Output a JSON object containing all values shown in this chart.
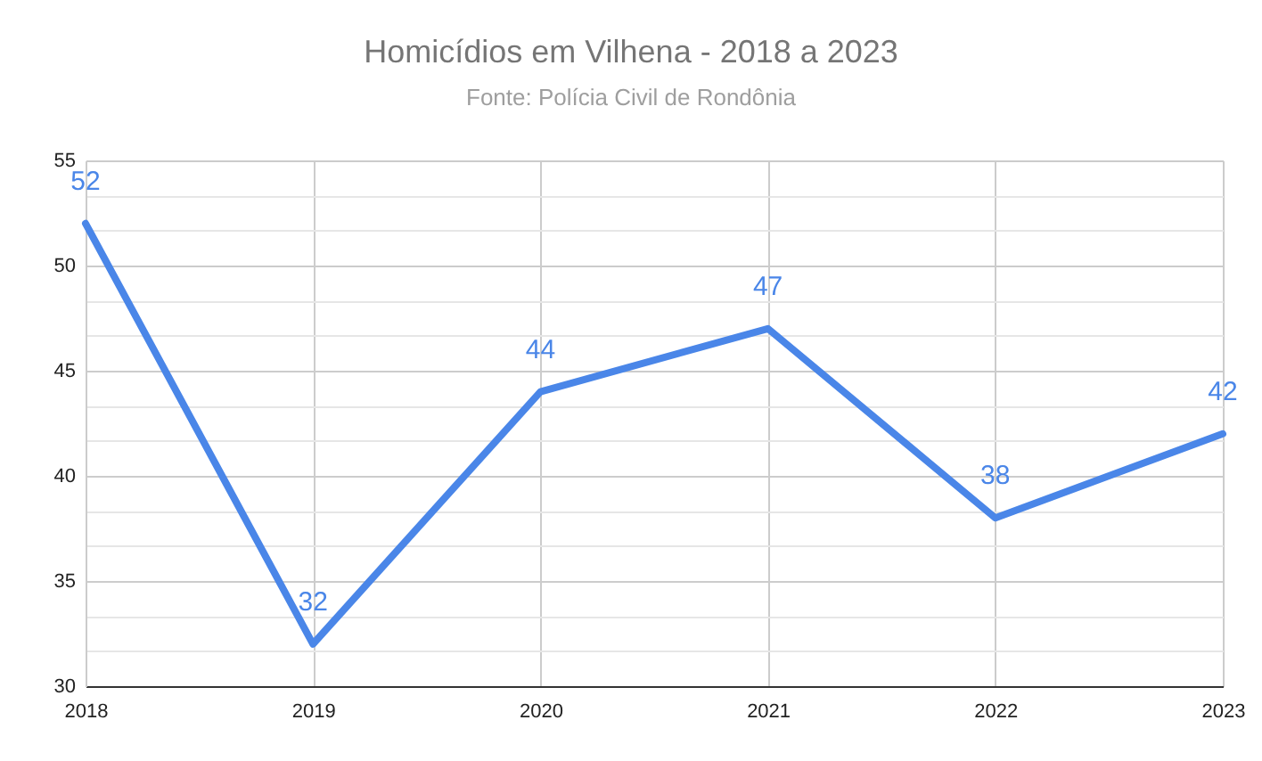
{
  "chart_data": {
    "type": "line",
    "title": "Homicídios em Vilhena - 2018 a 2023",
    "subtitle": "Fonte: Polícia Civil de Rondônia",
    "x": [
      2018,
      2019,
      2020,
      2021,
      2022,
      2023
    ],
    "series": [
      {
        "color": "#4a86e8",
        "values": [
          52,
          32,
          44,
          47,
          38,
          42
        ]
      }
    ],
    "xlim": [
      2018,
      2023
    ],
    "xticks": [
      2018,
      2019,
      2020,
      2021,
      2022,
      2023
    ],
    "ylim": [
      30,
      55
    ],
    "yticks": [
      30,
      {
        "value": 31.67,
        "label": null
      },
      {
        "value": 33.33,
        "label": null
      },
      35,
      {
        "value": 36.67,
        "label": null
      },
      {
        "value": 38.33,
        "label": null
      },
      40,
      {
        "value": 41.67,
        "label": null
      },
      {
        "value": 43.33,
        "label": null
      },
      45,
      {
        "value": 46.67,
        "label": null
      },
      {
        "value": 48.33,
        "label": null
      },
      50,
      {
        "value": 51.67,
        "label": null
      },
      {
        "value": 53.33,
        "label": null
      },
      55
    ],
    "data_labels": true,
    "grid": true
  }
}
